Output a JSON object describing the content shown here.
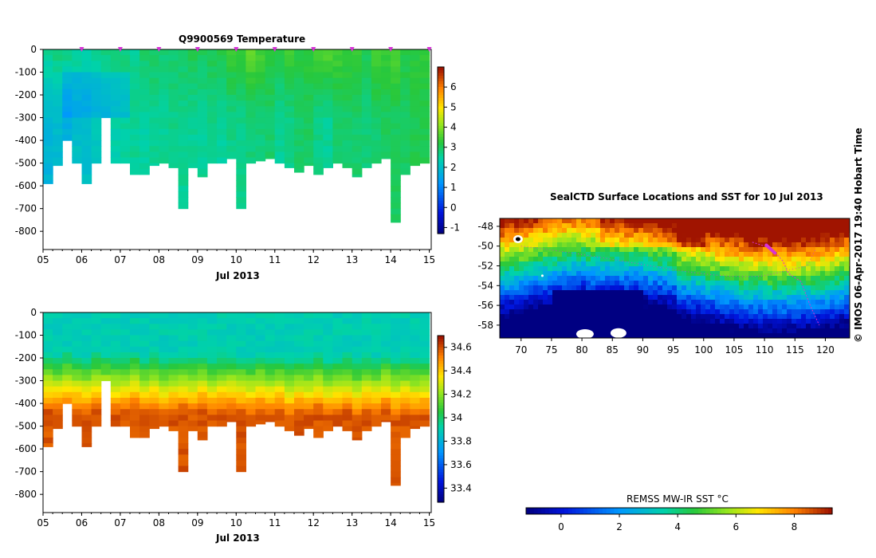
{
  "chart_data": [
    {
      "type": "heatmap",
      "id": "temperature",
      "title": "Q9900569  Temperature",
      "xlabel": "Jul 2013",
      "x_ticks": [
        "05",
        "06",
        "07",
        "08",
        "09",
        "10",
        "11",
        "12",
        "13",
        "14",
        "15"
      ],
      "y_ticks": [
        "0",
        "-100",
        "-200",
        "-300",
        "-400",
        "-500",
        "-600",
        "-700",
        "-800"
      ],
      "xlim": [
        5,
        15.05
      ],
      "ylim": [
        -880,
        0
      ],
      "colorbar": {
        "ticks": [
          "-1",
          "0",
          "1",
          "2",
          "3",
          "4",
          "5",
          "6"
        ],
        "min": -1.3,
        "max": 7.0
      },
      "profile_days": [
        5.0,
        5.25,
        5.5,
        5.75,
        6.0,
        6.25,
        6.5,
        6.75,
        7.0,
        7.25,
        7.5,
        7.75,
        8.0,
        8.25,
        8.5,
        8.75,
        9.0,
        9.25,
        9.5,
        9.75,
        10.0,
        10.25,
        10.5,
        10.75,
        11.0,
        11.25,
        11.5,
        11.75,
        12.0,
        12.25,
        12.5,
        12.75,
        13.0,
        13.25,
        13.5,
        13.75,
        14.0,
        14.25,
        14.5,
        14.75
      ],
      "max_depths": [
        590,
        510,
        400,
        500,
        590,
        500,
        300,
        500,
        500,
        550,
        550,
        510,
        500,
        520,
        700,
        520,
        560,
        500,
        500,
        480,
        700,
        500,
        490,
        480,
        500,
        520,
        540,
        510,
        550,
        520,
        500,
        520,
        560,
        520,
        500,
        480,
        760,
        550,
        510,
        500
      ],
      "surface_values": [
        2.6,
        2.8,
        2.7,
        2.6,
        2.5,
        2.6,
        2.7,
        2.7,
        2.8,
        2.6,
        2.9,
        3.0,
        2.8,
        2.9,
        3.0,
        3.1,
        3.0,
        3.1,
        3.2,
        3.4,
        3.3,
        3.7,
        3.5,
        3.3,
        3.2,
        3.4,
        3.2,
        3.3,
        3.6,
        3.6,
        3.5,
        3.4,
        3.4,
        3.1,
        3.5,
        3.4,
        3.6,
        3.2,
        3.3,
        3.3
      ],
      "deep_values": [
        1.8,
        1.9,
        1.7,
        2.0,
        2.0,
        2.2,
        2.3,
        2.4,
        2.5,
        2.6,
        2.5,
        2.6,
        2.6,
        2.7,
        2.6,
        2.6,
        2.6,
        2.7,
        2.5,
        2.7,
        2.7,
        2.8,
        2.8,
        2.9,
        2.6,
        2.7,
        2.9,
        3.0,
        2.7,
        2.6,
        2.9,
        2.9,
        2.9,
        2.8,
        2.9,
        3.0,
        3.0,
        3.0,
        3.1,
        3.1
      ],
      "surface_markers": [
        6,
        7,
        8,
        9,
        10,
        11,
        12,
        13,
        14,
        15
      ]
    },
    {
      "type": "heatmap",
      "id": "salinity",
      "title": "",
      "xlabel": "Jul 2013",
      "x_ticks": [
        "05",
        "06",
        "07",
        "08",
        "09",
        "10",
        "11",
        "12",
        "13",
        "14",
        "15"
      ],
      "y_ticks": [
        "0",
        "-100",
        "-200",
        "-300",
        "-400",
        "-500",
        "-600",
        "-700",
        "-800"
      ],
      "xlim": [
        5,
        15.05
      ],
      "ylim": [
        -880,
        0
      ],
      "colorbar": {
        "ticks": [
          "33.4",
          "33.6",
          "33.8",
          "34",
          "34.2",
          "34.4",
          "34.6"
        ],
        "min": 33.28,
        "max": 34.7
      },
      "profile_days": [
        5.0,
        5.25,
        5.5,
        5.75,
        6.0,
        6.25,
        6.5,
        6.75,
        7.0,
        7.25,
        7.5,
        7.75,
        8.0,
        8.25,
        8.5,
        8.75,
        9.0,
        9.25,
        9.5,
        9.75,
        10.0,
        10.25,
        10.5,
        10.75,
        11.0,
        11.25,
        11.5,
        11.75,
        12.0,
        12.25,
        12.5,
        12.75,
        13.0,
        13.25,
        13.5,
        13.75,
        14.0,
        14.25,
        14.5,
        14.75
      ],
      "max_depths": [
        590,
        510,
        400,
        500,
        590,
        500,
        300,
        500,
        500,
        550,
        550,
        510,
        500,
        520,
        700,
        520,
        560,
        500,
        500,
        480,
        700,
        500,
        490,
        480,
        500,
        520,
        540,
        510,
        550,
        520,
        500,
        520,
        560,
        520,
        500,
        480,
        760,
        550,
        510,
        500
      ],
      "surface_value": 33.9,
      "deep_value": 34.6,
      "profile_offsets": [
        0,
        10,
        -10,
        5,
        15,
        -5,
        0,
        10,
        5,
        -10,
        15,
        0,
        20,
        5,
        0,
        10,
        -5,
        15,
        5,
        0,
        10,
        20,
        0,
        15,
        5,
        30,
        10,
        20,
        0,
        25,
        15,
        5,
        30,
        10,
        20,
        0,
        25,
        10,
        20,
        15
      ]
    },
    {
      "type": "heatmap",
      "id": "sst_map",
      "title": "SealCTD Surface Locations and SST for 10 Jul 2013",
      "xlabel": "",
      "ylabel": "",
      "x_ticks": [
        "70",
        "75",
        "80",
        "85",
        "90",
        "95",
        "100",
        "105",
        "110",
        "115",
        "120"
      ],
      "y_ticks": [
        "-48",
        "-50",
        "-52",
        "-54",
        "-56",
        "-58"
      ],
      "xlim": [
        66.5,
        124
      ],
      "ylim": [
        -59.3,
        -47.2
      ],
      "colorbar": {
        "label": "REMSS MW-IR SST °C",
        "ticks": [
          "0",
          "2",
          "4",
          "6",
          "8"
        ],
        "min": -1.2,
        "max": 9.3
      },
      "credit": "©  IMOS 06-Apr-2017 19:40 Hobart Time"
    }
  ],
  "colors": {
    "profile_marker": "#d633d6",
    "track": "#d633d6",
    "background": "#ffffff"
  }
}
